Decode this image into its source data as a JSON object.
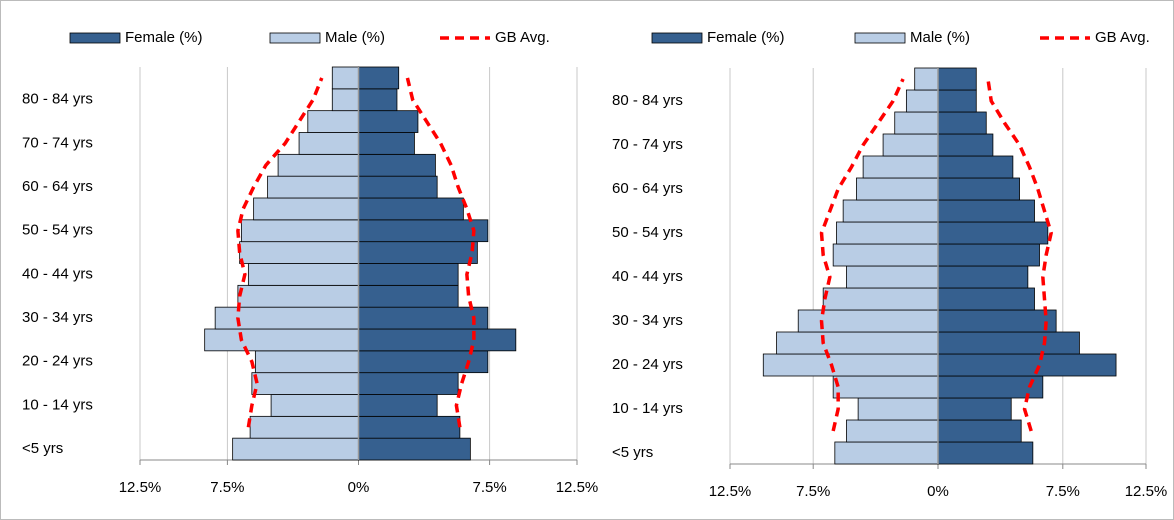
{
  "chart_data": [
    {
      "type": "pyramid",
      "categories": [
        "<5 yrs",
        null,
        "10 - 14 yrs",
        null,
        "20 - 24 yrs",
        null,
        "30 - 34 yrs",
        null,
        "40 - 44 yrs",
        null,
        "50 - 54 yrs",
        null,
        "60 - 64 yrs",
        null,
        "70 - 74 yrs",
        null,
        "80 - 84 yrs",
        null
      ],
      "series": [
        {
          "name": "Female (%)",
          "color": "#36608f",
          "side": "right",
          "values": [
            6.4,
            5.8,
            4.5,
            5.7,
            7.4,
            9.0,
            7.4,
            5.7,
            5.7,
            6.8,
            7.4,
            6.0,
            4.5,
            4.4,
            3.2,
            3.4,
            2.2,
            2.3
          ]
        },
        {
          "name": "Male (%)",
          "color": "#b9cde5",
          "side": "left",
          "values": [
            7.2,
            6.2,
            5.0,
            6.1,
            5.9,
            8.8,
            8.2,
            6.9,
            6.3,
            6.8,
            6.7,
            6.0,
            5.2,
            4.6,
            3.4,
            2.9,
            1.5,
            1.5
          ]
        },
        {
          "name": "GB Avg.",
          "color": "#ff0000",
          "female_values": [
            null,
            5.8,
            5.6,
            5.9,
            6.3,
            6.6,
            6.6,
            6.3,
            6.2,
            6.5,
            6.6,
            6.2,
            5.7,
            5.3,
            4.7,
            3.9,
            3.1,
            2.8
          ],
          "male_values": [
            null,
            6.3,
            6.1,
            5.8,
            6.1,
            6.7,
            6.9,
            6.8,
            6.5,
            6.8,
            6.9,
            6.6,
            6.0,
            5.3,
            4.2,
            3.4,
            2.6,
            2.1
          ]
        }
      ],
      "xlim": [
        -12.5,
        12.5
      ],
      "xticks": [
        {
          "value": -12.5,
          "label": "12.5%"
        },
        {
          "value": -7.5,
          "label": "7.5%"
        },
        {
          "value": 0,
          "label": "0%"
        },
        {
          "value": 7.5,
          "label": "7.5%"
        },
        {
          "value": 12.5,
          "label": "12.5%"
        }
      ],
      "grid": true
    },
    {
      "type": "pyramid",
      "categories": [
        "<5 yrs",
        null,
        "10 - 14 yrs",
        null,
        "20 - 24 yrs",
        null,
        "30 - 34 yrs",
        null,
        "40 - 44 yrs",
        null,
        "50 - 54 yrs",
        null,
        "60 - 64 yrs",
        null,
        "70 - 74 yrs",
        null,
        "80 - 84 yrs",
        null
      ],
      "series": [
        {
          "name": "Female (%)",
          "color": "#36608f",
          "side": "right",
          "values": [
            5.7,
            5.0,
            4.4,
            6.3,
            10.7,
            8.5,
            7.1,
            5.8,
            5.4,
            6.1,
            6.6,
            5.8,
            4.9,
            4.5,
            3.3,
            2.9,
            2.3,
            2.3
          ]
        },
        {
          "name": "Male (%)",
          "color": "#b9cde5",
          "side": "left",
          "values": [
            6.2,
            5.5,
            4.8,
            6.3,
            10.5,
            9.7,
            8.4,
            6.9,
            5.5,
            6.3,
            6.1,
            5.7,
            4.9,
            4.5,
            3.3,
            2.6,
            1.9,
            1.4
          ]
        },
        {
          "name": "GB Avg.",
          "color": "#ff0000",
          "female_values": [
            null,
            5.6,
            5.2,
            5.5,
            6.1,
            6.4,
            6.5,
            6.4,
            6.3,
            6.5,
            6.8,
            6.4,
            6.0,
            5.5,
            4.9,
            4.0,
            3.2,
            3.0
          ],
          "male_values": [
            null,
            6.3,
            6.0,
            6.0,
            6.4,
            6.9,
            7.0,
            6.8,
            6.5,
            6.9,
            7.0,
            6.5,
            6.0,
            5.2,
            4.5,
            3.6,
            2.7,
            2.1
          ]
        }
      ],
      "xlim": [
        -12.5,
        12.5
      ],
      "xticks": [
        {
          "value": -12.5,
          "label": "12.5%"
        },
        {
          "value": -7.5,
          "label": "7.5%"
        },
        {
          "value": 0,
          "label": "0%"
        },
        {
          "value": 7.5,
          "label": "7.5%"
        },
        {
          "value": 12.5,
          "label": "12.5%"
        }
      ],
      "grid": true
    }
  ]
}
